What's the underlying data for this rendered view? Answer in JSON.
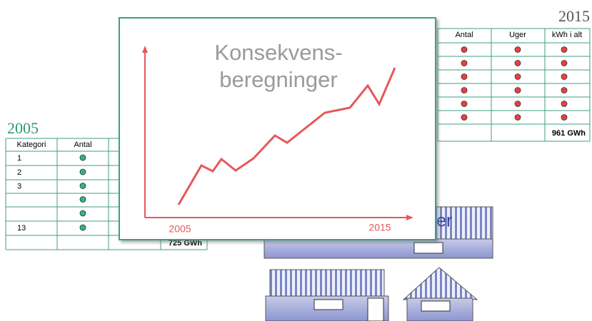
{
  "left_table": {
    "year": "2005",
    "headers": [
      "Kategori",
      "Antal"
    ],
    "row_labels": [
      "1",
      "2",
      "3",
      "",
      "",
      "13"
    ],
    "total": "725 GWh"
  },
  "right_table": {
    "year": "2015",
    "headers": [
      "Antal",
      "Uger",
      "kWh i alt"
    ],
    "total": "961 GWh"
  },
  "card": {
    "title_lines": [
      "Konsekvens-",
      "beregninger"
    ],
    "x_start": "2005",
    "x_end": "2015"
  },
  "house_label": "ller"
}
